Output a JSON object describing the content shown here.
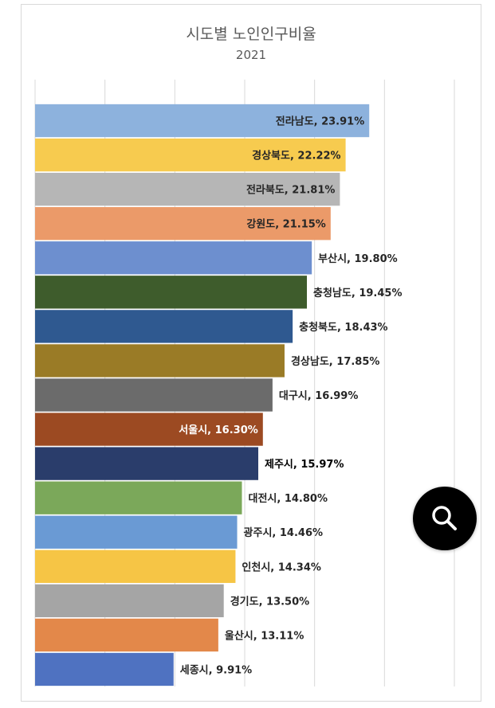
{
  "chart_data": {
    "type": "bar",
    "orientation": "horizontal",
    "title": "시도별 노인인구비율",
    "subtitle": "2021",
    "xlim": [
      0,
      30
    ],
    "grid": true,
    "data_labels": [
      "전라남도, 23.91%",
      "경상북도, 22.22%",
      "전라북도, 21.81%",
      "강원도, 21.15%",
      "부산시, 19.80%",
      "충청남도, 19.45%",
      "충청북도, 18.43%",
      "경상남도, 17.85%",
      "대구시, 16.99%",
      "서울시, 16.30%",
      "제주시, 15.97%",
      "대전시, 14.80%",
      "광주시, 14.46%",
      "인천시, 14.34%",
      "경기도, 13.50%",
      "울산시, 13.11%",
      "세종시, 9.91%"
    ],
    "categories": [
      "전라남도",
      "경상북도",
      "전라북도",
      "강원도",
      "부산시",
      "충청남도",
      "충청북도",
      "경상남도",
      "대구시",
      "서울시",
      "제주시",
      "대전시",
      "광주시",
      "인천시",
      "경기도",
      "울산시",
      "세종시"
    ],
    "values": [
      23.91,
      22.22,
      21.81,
      21.15,
      19.8,
      19.45,
      18.43,
      17.85,
      16.99,
      16.3,
      15.97,
      14.8,
      14.46,
      14.34,
      13.5,
      13.11,
      9.91
    ],
    "colors": [
      "#8db2dd",
      "#f7cb4f",
      "#b6b6b6",
      "#eb9a69",
      "#6d8fcf",
      "#3e5c2c",
      "#2f5990",
      "#9a7b26",
      "#6b6b6b",
      "#9c4a22",
      "#2a3d6b",
      "#7ba85a",
      "#6a9ad4",
      "#f6c545",
      "#a5a5a5",
      "#e3884a",
      "#4f72c1"
    ],
    "label_inside": [
      true,
      true,
      true,
      true,
      false,
      false,
      false,
      false,
      false,
      true,
      false,
      false,
      false,
      false,
      false,
      false,
      false
    ],
    "label_color": [
      "#262626",
      "#262626",
      "#262626",
      "#262626",
      "#262626",
      "#262626",
      "#262626",
      "#262626",
      "#262626",
      "#ffffff",
      "#000000",
      "#262626",
      "#262626",
      "#262626",
      "#262626",
      "#262626",
      "#262626"
    ]
  },
  "search_button": {
    "icon": "search-icon"
  }
}
